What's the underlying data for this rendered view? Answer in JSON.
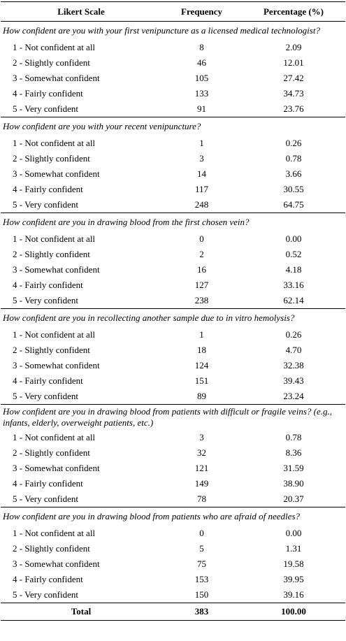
{
  "header": [
    "Likert Scale",
    "Frequency",
    "Percentage (%)"
  ],
  "sections": [
    {
      "question": "How confident are you with your first venipuncture as a licensed medical technologist?",
      "rows": [
        [
          "1 - Not confident at all",
          "8",
          "2.09"
        ],
        [
          "2 - Slightly confident",
          "46",
          "12.01"
        ],
        [
          "3 - Somewhat confident",
          "105",
          "27.42"
        ],
        [
          "4 - Fairly confident",
          "133",
          "34.73"
        ],
        [
          "5 - Very confident",
          "91",
          "23.76"
        ]
      ]
    },
    {
      "question": "How confident are you with your recent venipuncture?",
      "rows": [
        [
          "1 - Not confident at all",
          "1",
          "0.26"
        ],
        [
          "2 - Slightly confident",
          "3",
          "0.78"
        ],
        [
          "3 - Somewhat confident",
          "14",
          "3.66"
        ],
        [
          "4 - Fairly confident",
          "117",
          "30.55"
        ],
        [
          "5 - Very confident",
          "248",
          "64.75"
        ]
      ]
    },
    {
      "question": "How confident are you in drawing blood from the first chosen vein?",
      "rows": [
        [
          "1 - Not confident at all",
          "0",
          "0.00"
        ],
        [
          "2 - Slightly confident",
          "2",
          "0.52"
        ],
        [
          "3 - Somewhat confident",
          "16",
          "4.18"
        ],
        [
          "4 - Fairly confident",
          "127",
          "33.16"
        ],
        [
          "5 - Very confident",
          "238",
          "62.14"
        ]
      ]
    },
    {
      "question": "How confident are you in recollecting another sample due to in vitro hemolysis?",
      "rows": [
        [
          "1 - Not confident at all",
          "1",
          "0.26"
        ],
        [
          "2 - Slightly confident",
          "18",
          "4.70"
        ],
        [
          "3 - Somewhat confident",
          "124",
          "32.38"
        ],
        [
          "4 - Fairly confident",
          "151",
          "39.43"
        ],
        [
          "5 - Very confident",
          "89",
          "23.24"
        ]
      ]
    },
    {
      "question": "How confident are you in drawing blood from patients with difficult or fragile veins? (e.g., infants, elderly, overweight patients, etc.)",
      "rows": [
        [
          "1 - Not confident at all",
          "3",
          "0.78"
        ],
        [
          "2 - Slightly confident",
          "32",
          "8.36"
        ],
        [
          "3 - Somewhat confident",
          "121",
          "31.59"
        ],
        [
          "4 - Fairly confident",
          "149",
          "38.90"
        ],
        [
          "5 - Very confident",
          "78",
          "20.37"
        ]
      ]
    },
    {
      "question": "How confident are you in drawing blood from patients who are afraid of needles?",
      "rows": [
        [
          "1 - Not confident at all",
          "0",
          "0.00"
        ],
        [
          "2 - Slightly confident",
          "5",
          "1.31"
        ],
        [
          "3 - Somewhat confident",
          "75",
          "19.58"
        ],
        [
          "4 - Fairly confident",
          "153",
          "39.95"
        ],
        [
          "5 - Very confident",
          "150",
          "39.16"
        ]
      ]
    }
  ],
  "total": [
    "Total",
    "383",
    "100.00"
  ]
}
